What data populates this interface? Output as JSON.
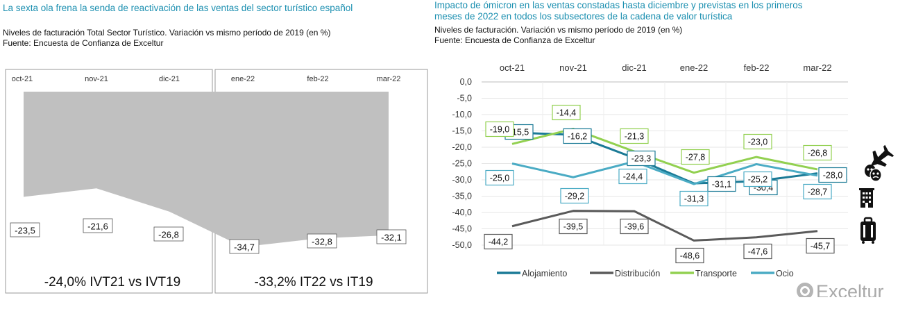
{
  "left": {
    "title": "La sexta ola frena la senda de reactivación de las ventas del sector turístico español",
    "subtitle": "Niveles de facturación Total Sector Turístico. Variación vs mismo período de  2019 (en %)",
    "source": "Fuente: Encuesta de Confianza de Exceltur",
    "summary_left": "-24,0% IVT21 vs IVT19",
    "summary_right": "-33,2% IT22 vs IT19"
  },
  "right": {
    "title_line1": "Impacto de ómicron en las ventas constadas hasta diciembre y previstas en los primeros",
    "title_line2": "meses de 2022 en todos los subsectores de la  cadena de valor turística",
    "subtitle": "Niveles de facturación. Variación vs mismo período de  2019 (en %)",
    "source": "Fuente: Encuesta de Confianza de Exceltur"
  },
  "logo_text": "Exceltur",
  "colors": {
    "title": "#1b8fb0",
    "area": "#c0c0c0",
    "Alojamiento": "#1a7a96",
    "Distribución": "#5a5a5a",
    "Transporte": "#92d050",
    "Ocio": "#4aabc4"
  },
  "chart_data": [
    {
      "type": "area",
      "title": "Niveles de facturación Total Sector Turístico. Variación vs mismo período de  2019 (en %)",
      "categories": [
        "oct-21",
        "nov-21",
        "dic-21",
        "ene-22",
        "feb-22",
        "mar-22"
      ],
      "values": [
        -23.5,
        -21.6,
        -26.8,
        -34.7,
        -32.8,
        -32.1
      ],
      "labels": [
        "-23,5",
        "-21,6",
        "-26,8",
        "-34,7",
        "-32,8",
        "-32,1"
      ],
      "ylim": [
        -36,
        0
      ]
    },
    {
      "type": "line",
      "title": "Impacto de ómicron en las ventas constadas hasta diciembre y previstas en los primeros meses de 2022 en todos los subsectores de la  cadena de valor turística",
      "categories": [
        "oct-21",
        "nov-21",
        "dic-21",
        "ene-22",
        "feb-22",
        "mar-22"
      ],
      "yticks": [
        "0,0",
        "-5,0",
        "-10,0",
        "-15,0",
        "-20,0",
        "-25,0",
        "-30,0",
        "-35,0",
        "-40,0",
        "-45,0",
        "-50,0"
      ],
      "ylim": [
        -50,
        0
      ],
      "legend_position": "bottom",
      "series": [
        {
          "name": "Alojamiento",
          "values": [
            -15.5,
            -16.2,
            -23.3,
            -31.1,
            -30.4,
            -28.0
          ],
          "labels": [
            "-15,5",
            "-16,2",
            "-23,3",
            "-31,1",
            "-30,4",
            "-28,0"
          ]
        },
        {
          "name": "Distribución",
          "values": [
            -44.2,
            -39.5,
            -39.6,
            -48.6,
            -47.6,
            -45.7
          ],
          "labels": [
            "-44,2",
            "-39,5",
            "-39,6",
            "-48,6",
            "-47,6",
            "-45,7"
          ]
        },
        {
          "name": "Transporte",
          "values": [
            -19.0,
            -14.4,
            -21.3,
            -27.8,
            -23.0,
            -26.8
          ],
          "labels": [
            "-19,0",
            "-14,4",
            "-21,3",
            "-27,8",
            "-23,0",
            "-26,8"
          ]
        },
        {
          "name": "Ocio",
          "values": [
            -25.0,
            -29.2,
            -24.4,
            -31.3,
            -25.2,
            -28.7
          ],
          "labels": [
            "-25,0",
            "-29,2",
            "-24,4",
            "-31,3",
            "-25,2",
            "-28,7"
          ]
        }
      ]
    }
  ]
}
